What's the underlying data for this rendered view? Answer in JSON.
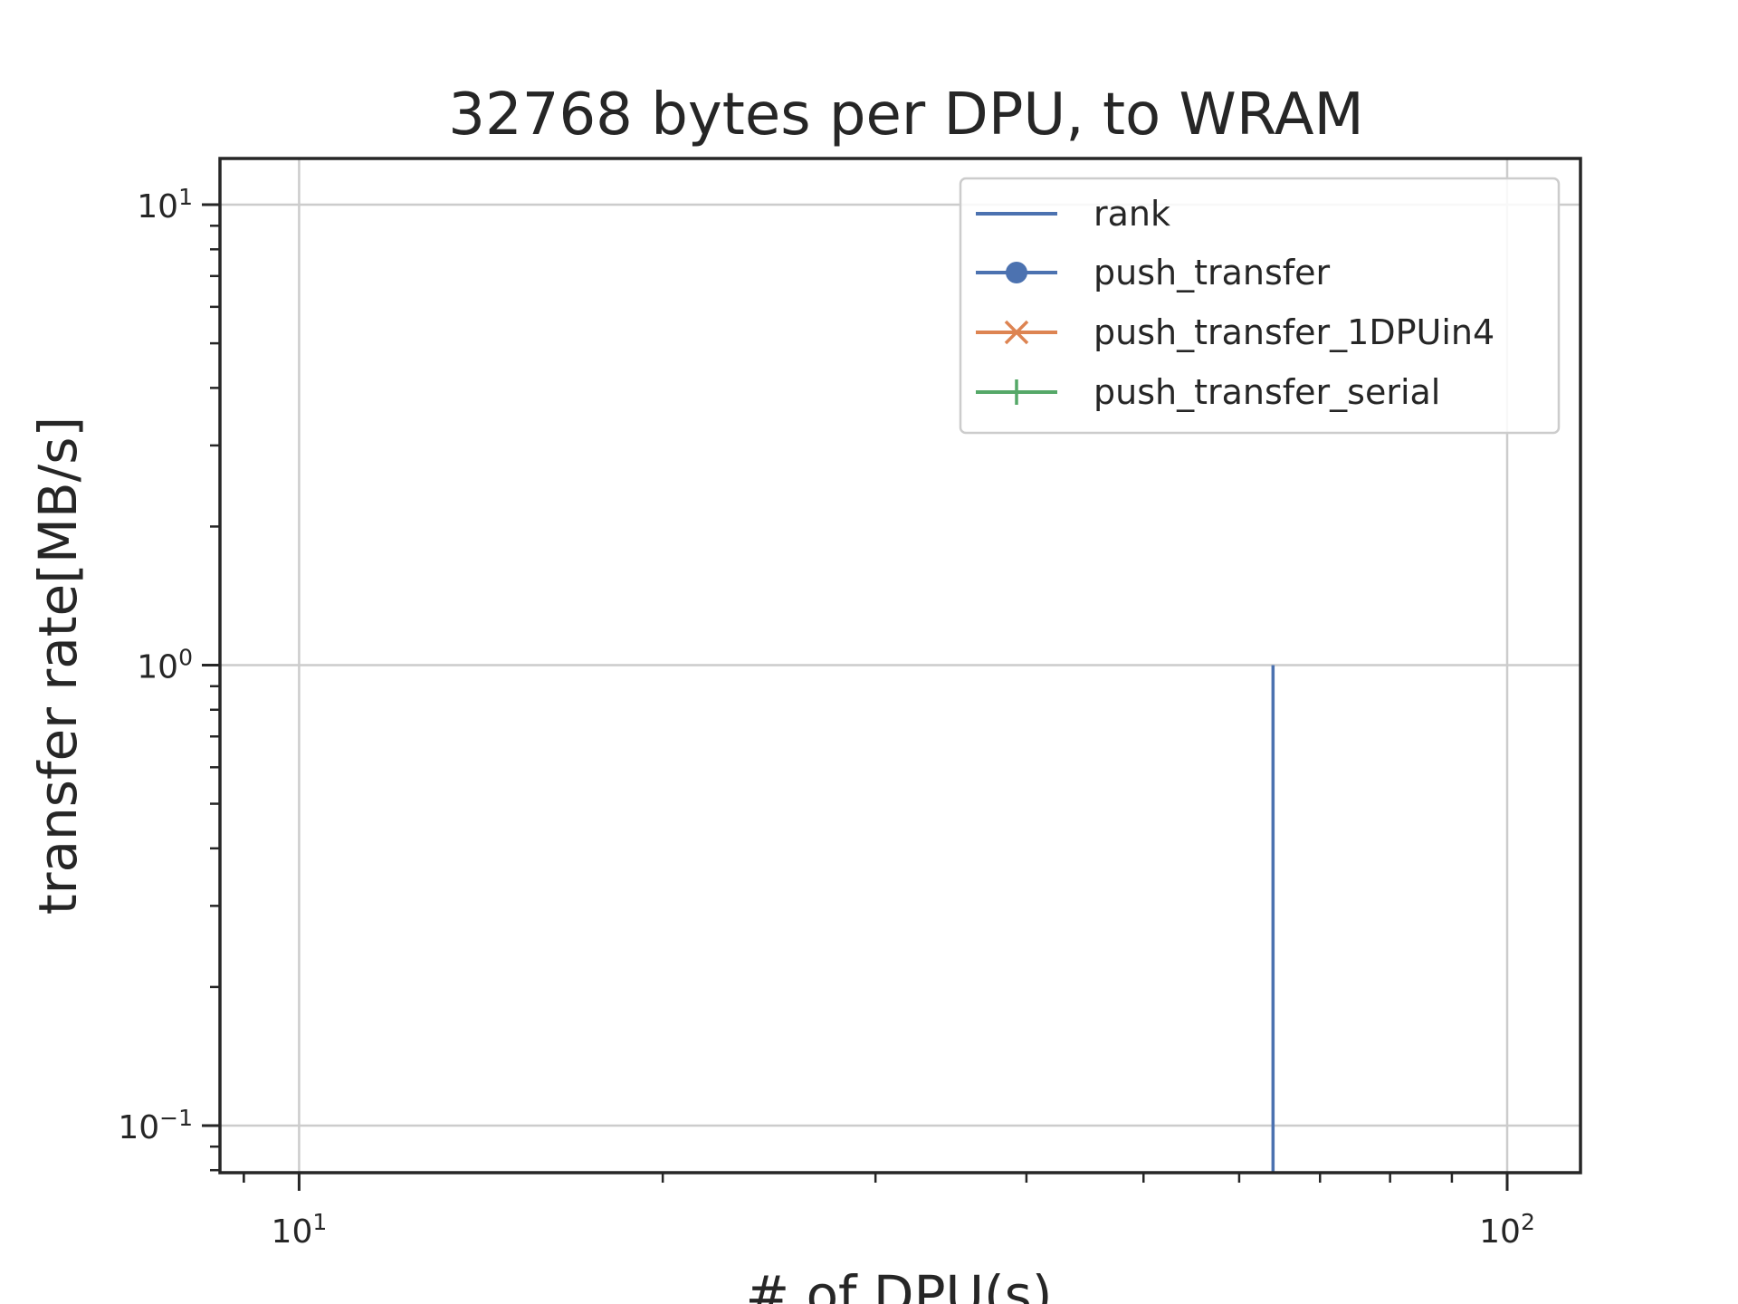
{
  "chart_data": {
    "type": "line",
    "title": "32768 bytes per DPU, to WRAM",
    "xlabel": "# of DPU(s)",
    "ylabel": "transfer rate[MB/s]",
    "x_scale": "log",
    "y_scale": "log",
    "xlim": [
      8.6,
      115
    ],
    "ylim": [
      0.079,
      12.6
    ],
    "x_ticks": [
      {
        "value": 10,
        "label_base": "10",
        "label_exp": "1"
      },
      {
        "value": 100,
        "label_base": "10",
        "label_exp": "2"
      }
    ],
    "y_ticks": [
      {
        "value": 0.1,
        "label_base": "10",
        "label_exp": "−1"
      },
      {
        "value": 1,
        "label_base": "10",
        "label_exp": "0"
      },
      {
        "value": 10,
        "label_base": "10",
        "label_exp": "1"
      }
    ],
    "grid": true,
    "legend_position": "top-right",
    "series": [
      {
        "name": "rank",
        "color": "#4c72b0",
        "marker": "none",
        "style": "vertical-line",
        "x": 64,
        "y_range": [
          0.079,
          1
        ]
      },
      {
        "name": "push_transfer",
        "color": "#4c72b0",
        "marker": "circle",
        "points": []
      },
      {
        "name": "push_transfer_1DPUin4",
        "color": "#dd8452",
        "marker": "x",
        "points": []
      },
      {
        "name": "push_transfer_serial",
        "color": "#55a868",
        "marker": "plus",
        "points": []
      }
    ]
  }
}
